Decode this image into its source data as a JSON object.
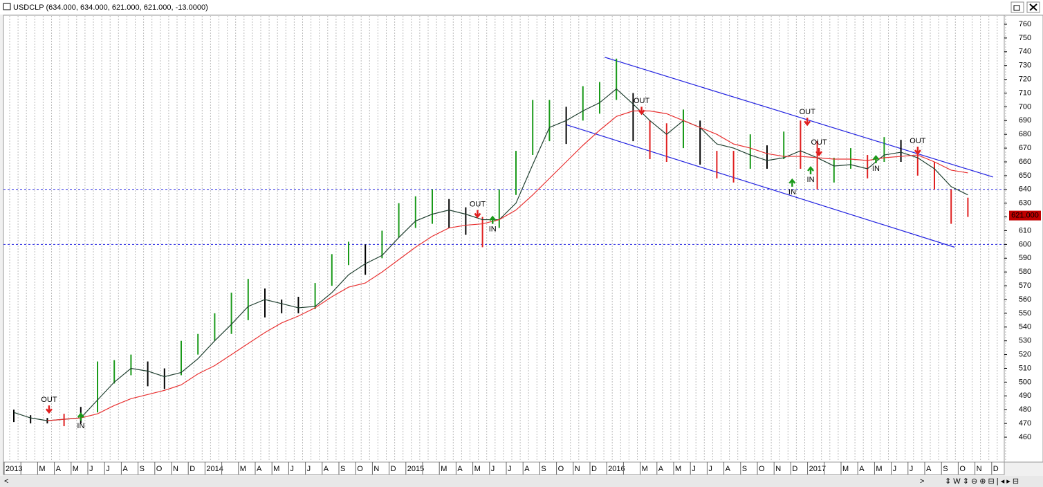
{
  "chart_data": {
    "type": "ohlc",
    "title": "USDCLP (634.000, 634.000, 621.000, 621.000, -13.0000)",
    "categories": [
      "2013",
      null,
      "M",
      "A",
      "M",
      "J",
      "J",
      "A",
      "S",
      "O",
      "N",
      "D",
      "2014",
      null,
      "M",
      "A",
      "M",
      "J",
      "J",
      "A",
      "S",
      "O",
      "N",
      "D",
      "2015",
      null,
      "M",
      "A",
      "M",
      "J",
      "J",
      "A",
      "S",
      "O",
      "N",
      "D",
      "2016",
      null,
      "M",
      "A",
      "M",
      "J",
      "J",
      "A",
      "S",
      "O",
      "N",
      "D",
      "2017",
      null,
      "M",
      "A",
      "M",
      "J",
      "J",
      "A",
      "S",
      "O",
      "N",
      "D"
    ],
    "high": [
      480,
      476,
      474,
      477,
      482,
      515,
      516,
      520,
      515,
      510,
      530,
      535,
      550,
      565,
      575,
      568,
      560,
      562,
      572,
      593,
      602,
      600,
      610,
      630,
      635,
      640,
      633,
      627,
      620,
      640,
      668,
      705,
      705,
      700,
      715,
      718,
      735,
      710,
      690,
      688,
      698,
      690,
      668,
      668,
      680,
      672,
      682,
      690,
      675,
      663,
      670,
      665,
      678,
      676,
      668,
      660,
      640,
      634,
      null,
      null
    ],
    "low": [
      471,
      470,
      470,
      468,
      470,
      478,
      499,
      505,
      497,
      495,
      505,
      520,
      530,
      535,
      545,
      547,
      550,
      550,
      553,
      570,
      585,
      578,
      590,
      605,
      612,
      615,
      612,
      607,
      598,
      612,
      636,
      665,
      675,
      673,
      690,
      695,
      705,
      675,
      662,
      660,
      670,
      658,
      648,
      645,
      655,
      655,
      662,
      655,
      640,
      645,
      655,
      648,
      660,
      660,
      650,
      640,
      615,
      620,
      null,
      null
    ],
    "bar_colors": [
      "#000000",
      "#000000",
      "#000000",
      "#e02020",
      "#000000",
      "#1a9a1a",
      "#1a9a1a",
      "#1a9a1a",
      "#000000",
      "#000000",
      "#1a9a1a",
      "#1a9a1a",
      "#1a9a1a",
      "#1a9a1a",
      "#1a9a1a",
      "#000000",
      "#000000",
      "#000000",
      "#1a9a1a",
      "#1a9a1a",
      "#1a9a1a",
      "#000000",
      "#1a9a1a",
      "#1a9a1a",
      "#1a9a1a",
      "#1a9a1a",
      "#000000",
      "#000000",
      "#e02020",
      "#1a9a1a",
      "#1a9a1a",
      "#1a9a1a",
      "#1a9a1a",
      "#000000",
      "#1a9a1a",
      "#1a9a1a",
      "#1a9a1a",
      "#000000",
      "#e02020",
      "#e02020",
      "#1a9a1a",
      "#000000",
      "#e02020",
      "#e02020",
      "#1a9a1a",
      "#000000",
      "#1a9a1a",
      "#e02020",
      "#e02020",
      "#1a9a1a",
      "#1a9a1a",
      "#e02020",
      "#1a9a1a",
      "#000000",
      "#e02020",
      "#e02020",
      "#e02020",
      "#e02020",
      "#000000",
      "#000000"
    ],
    "series": [
      {
        "color": "#1f3f2f",
        "values": [
          478,
          474,
          472,
          473,
          474,
          487,
          500,
          510,
          508,
          504,
          507,
          517,
          530,
          542,
          555,
          560,
          557,
          554,
          555,
          565,
          578,
          586,
          592,
          605,
          617,
          622,
          625,
          622,
          618,
          618,
          630,
          658,
          685,
          690,
          697,
          703,
          713,
          702,
          690,
          680,
          690,
          685,
          673,
          670,
          665,
          661,
          663,
          668,
          663,
          657,
          658,
          655,
          665,
          667,
          663,
          655,
          642,
          636,
          null,
          null
        ]
      },
      {
        "color": "#e83030",
        "values": [
          null,
          null,
          472,
          473,
          474,
          477,
          483,
          488,
          491,
          494,
          498,
          506,
          512,
          520,
          528,
          536,
          543,
          548,
          554,
          562,
          569,
          572,
          580,
          589,
          598,
          606,
          612,
          614,
          615,
          618,
          625,
          636,
          648,
          660,
          672,
          683,
          693,
          697,
          697,
          695,
          690,
          685,
          680,
          673,
          670,
          666,
          664,
          664,
          663,
          662,
          662,
          661,
          663,
          664,
          665,
          660,
          654,
          652,
          null,
          null
        ]
      }
    ],
    "channel_lines": [
      {
        "color": "#2020e0",
        "x": [
          35.8,
          59
        ],
        "values": [
          736,
          649
        ]
      },
      {
        "color": "#2020e0",
        "x": [
          33.5,
          56.7
        ],
        "values": [
          687,
          598
        ]
      }
    ],
    "levels": [
      640,
      600
    ],
    "signals": [
      {
        "label": "OUT",
        "x": 2.6,
        "value": 477
      },
      {
        "label": "IN",
        "x": 4.5,
        "value": 478
      },
      {
        "label": "OUT",
        "x": 28.2,
        "value": 619
      },
      {
        "label": "IN",
        "x": 29.1,
        "value": 621
      },
      {
        "label": "OUT",
        "x": 38,
        "value": 694
      },
      {
        "label": "IN",
        "x": 47,
        "value": 648
      },
      {
        "label": "OUT",
        "x": 47.9,
        "value": 686
      },
      {
        "label": "IN",
        "x": 48.1,
        "value": 657
      },
      {
        "label": "OUT",
        "x": 48.6,
        "value": 664
      },
      {
        "label": "IN",
        "x": 52,
        "value": 665
      },
      {
        "label": "OUT",
        "x": 54.5,
        "value": 665
      }
    ],
    "last_price": {
      "value": 621,
      "label": "621.000"
    },
    "ylim": [
      460,
      760
    ],
    "yticks": [
      460,
      470,
      480,
      490,
      500,
      510,
      520,
      530,
      540,
      550,
      560,
      570,
      580,
      590,
      600,
      610,
      620,
      630,
      640,
      650,
      660,
      670,
      680,
      690,
      700,
      710,
      720,
      730,
      740,
      750,
      760
    ]
  }
}
